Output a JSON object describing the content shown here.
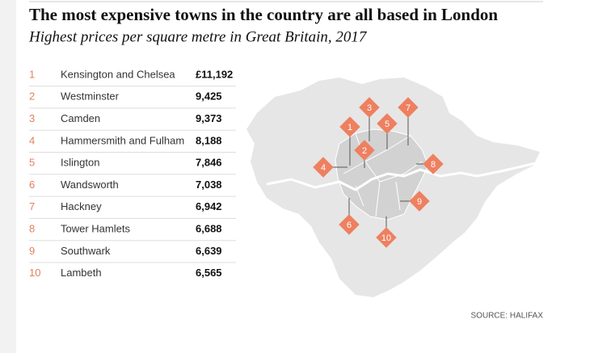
{
  "header": {
    "title": "The most expensive towns in the country are all based in London",
    "subtitle": "Highest prices per square metre in Great Britain, 2017"
  },
  "table": {
    "rows": [
      [
        "1",
        "Kensington and Chelsea",
        "£11,192"
      ],
      [
        "2",
        "Westminster",
        "9,425"
      ],
      [
        "3",
        "Camden",
        "9,373"
      ],
      [
        "4",
        "Hammersmith and Fulham",
        "8,188"
      ],
      [
        "5",
        "Islington",
        "7,846"
      ],
      [
        "6",
        "Wandsworth",
        "7,038"
      ],
      [
        "7",
        "Hackney",
        "6,942"
      ],
      [
        "8",
        "Tower Hamlets",
        "6,688"
      ],
      [
        "9",
        "Southwark",
        "6,639"
      ],
      [
        "10",
        "Lambeth",
        "6,565"
      ]
    ]
  },
  "source": "SOURCE: HALIFAX"
}
